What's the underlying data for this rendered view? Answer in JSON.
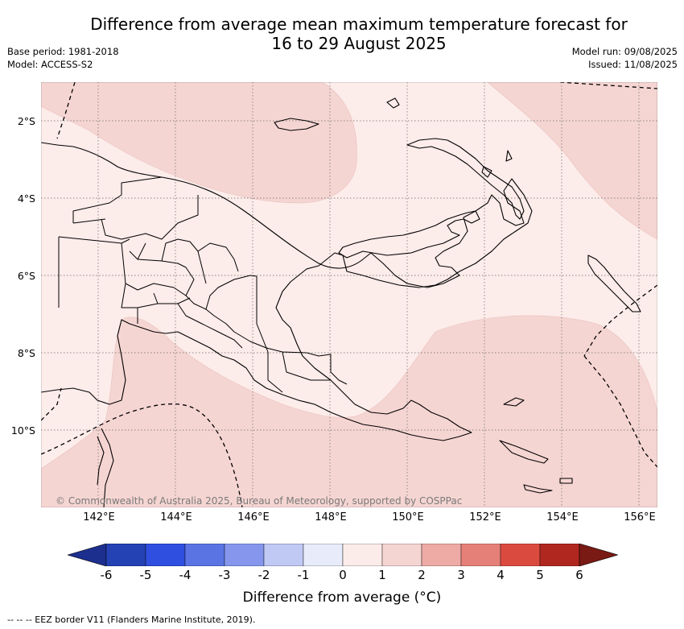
{
  "title_line1": "Difference from average mean maximum temperature forecast for",
  "title_line2": "16 to 29 August 2025",
  "base_period": "Base period: 1981-2018",
  "model": "Model: ACCESS-S2",
  "model_run": "Model run: 09/08/2025",
  "issued": "Issued: 11/08/2025",
  "lat_labels": [
    "2°S",
    "4°S",
    "6°S",
    "8°S",
    "10°S"
  ],
  "lon_labels": [
    "142°E",
    "144°E",
    "146°E",
    "148°E",
    "150°E",
    "152°E",
    "154°E",
    "156°E"
  ],
  "copyright": "© Commonwealth of Australia 2025, Bureau of Meteorology, supported by COSPPac",
  "colorbar": {
    "ticks": [
      "-6",
      "-5",
      "-4",
      "-3",
      "-2",
      "-1",
      "0",
      "1",
      "2",
      "3",
      "4",
      "5",
      "6"
    ],
    "colors": [
      "#1c2f8f",
      "#2542b4",
      "#2f4fe0",
      "#5a74e4",
      "#8596ec",
      "#c0c8f4",
      "#e8ebfa",
      "#fbebe9",
      "#f5d5d2",
      "#eeaaa5",
      "#e58078",
      "#db4a3e",
      "#b0271f",
      "#7a1a14"
    ],
    "label": "Difference from average (°C)"
  },
  "footnote": "--  --  -- EEZ border V11 (Flanders Marine Institute, 2019).",
  "legend_colors": {
    "light_band": "#fcecea",
    "medium_band": "#f5d5d2"
  }
}
